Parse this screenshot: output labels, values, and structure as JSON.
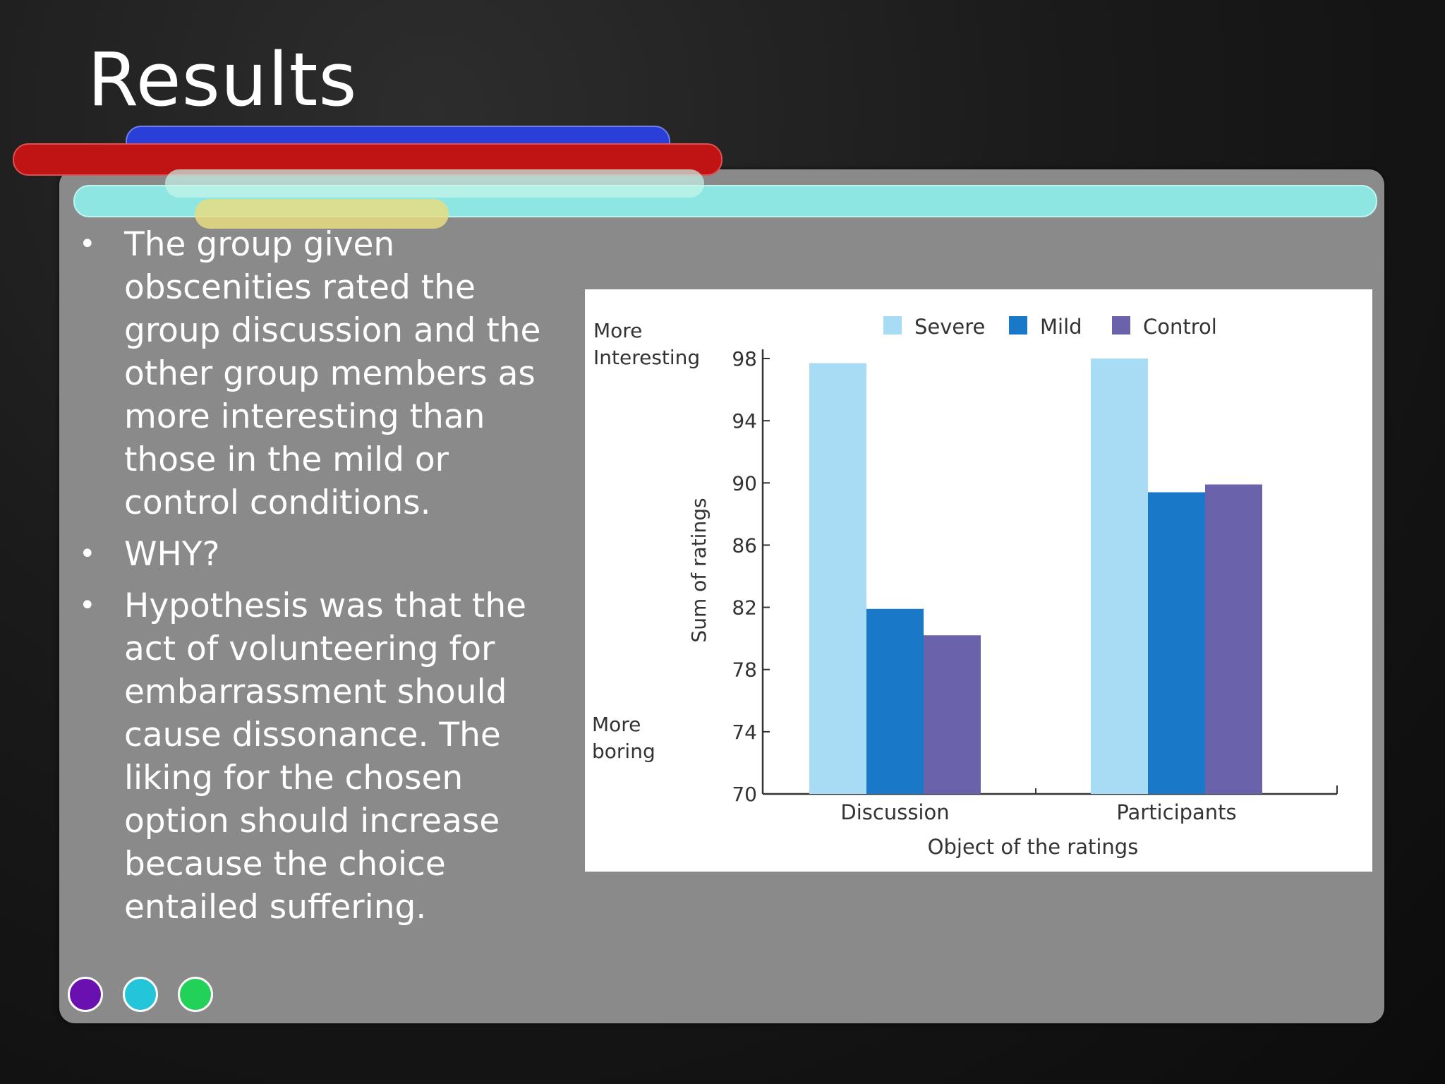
{
  "slide": {
    "title": "Results",
    "bullets": [
      "The group given obscenities rated the group discussion and the other group members as more interesting than those in the mild or control conditions.",
      "WHY?",
      "Hypothesis was that the act of volunteering for embarrassment should cause dissonance. The liking for the chosen option should increase because the choice entailed suffering."
    ],
    "bullet_symbol": "•",
    "accent_colors": [
      "#2a3fd8",
      "#c01414",
      "#8ee6e2",
      "#e6dc82"
    ],
    "dot_colors": [
      "#6a0fb0",
      "#22c6d8",
      "#22d158"
    ]
  },
  "chart_data": {
    "type": "bar",
    "categories": [
      "Discussion",
      "Participants"
    ],
    "series": [
      {
        "name": "Severe",
        "color": "#a8dcf4",
        "values": [
          97.7,
          98.0
        ]
      },
      {
        "name": "Mild",
        "color": "#1a78c8",
        "values": [
          81.9,
          89.4
        ]
      },
      {
        "name": "Control",
        "color": "#6a63ac",
        "values": [
          80.2,
          89.9
        ]
      }
    ],
    "xlabel": "Object of the ratings",
    "ylabel": "Sum of ratings",
    "ylim": [
      70,
      98
    ],
    "yticks": [
      70,
      74,
      78,
      82,
      86,
      90,
      94,
      98
    ],
    "annotations": {
      "top": "More\nInteresting",
      "bottom": "More\nboring"
    },
    "legend_position": "top",
    "grid": false
  }
}
